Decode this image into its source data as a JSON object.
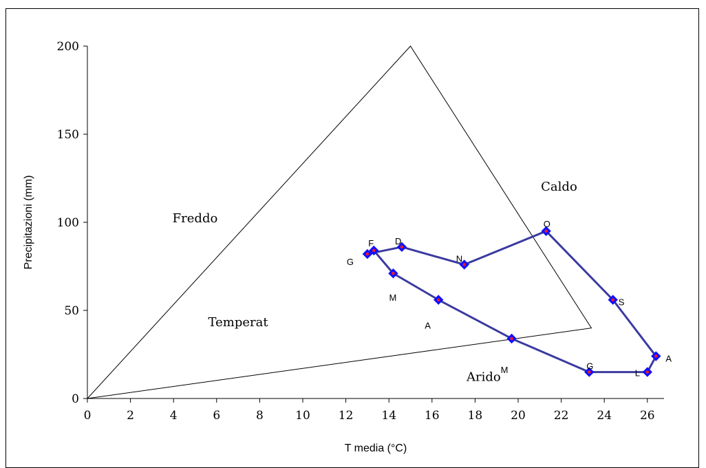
{
  "chart_data": {
    "type": "line",
    "xlabel": "T  media (°C)",
    "ylabel": "Precipitazioni (mm)",
    "xlim": [
      0,
      27
    ],
    "ylim": [
      0,
      200
    ],
    "x_ticks": [
      "0",
      "2",
      "4",
      "6",
      "8",
      "10",
      "12",
      "14",
      "16",
      "18",
      "20",
      "22",
      "24",
      "26"
    ],
    "y_ticks": [
      "0",
      "50",
      "100",
      "150",
      "200"
    ],
    "grid": false,
    "colors": {
      "series": "#3a3aa0",
      "marker": "#1010ff",
      "marker_center": "#ff1a1a",
      "reference": "#000000"
    },
    "reference_triangle": [
      {
        "x": 0,
        "y": 0
      },
      {
        "x": 15.0,
        "y": 200
      },
      {
        "x": 23.4,
        "y": 40
      }
    ],
    "region_labels": [
      {
        "text": "Freddo",
        "x": 5.0,
        "y": 100
      },
      {
        "text": "Caldo",
        "x": 21.9,
        "y": 118
      },
      {
        "text": "Temperat",
        "x": 7.0,
        "y": 41
      },
      {
        "text": "Arido",
        "x": 18.4,
        "y": 10
      }
    ],
    "series": [
      {
        "points": [
          {
            "label": "G",
            "x": 13.0,
            "y": 82
          },
          {
            "label": "F",
            "x": 13.3,
            "y": 84
          },
          {
            "label": "M",
            "x": 14.2,
            "y": 71
          },
          {
            "label": "A",
            "x": 16.3,
            "y": 56
          },
          {
            "label": "M",
            "x": 19.7,
            "y": 34
          },
          {
            "label": "G",
            "x": 23.3,
            "y": 15
          },
          {
            "label": "L",
            "x": 26.0,
            "y": 15
          },
          {
            "label": "A",
            "x": 26.4,
            "y": 24
          },
          {
            "label": "S",
            "x": 24.4,
            "y": 56
          },
          {
            "label": "O",
            "x": 21.3,
            "y": 95
          },
          {
            "label": "N",
            "x": 17.5,
            "y": 76
          },
          {
            "label": "D",
            "x": 14.6,
            "y": 86
          }
        ],
        "closed": true
      }
    ]
  }
}
